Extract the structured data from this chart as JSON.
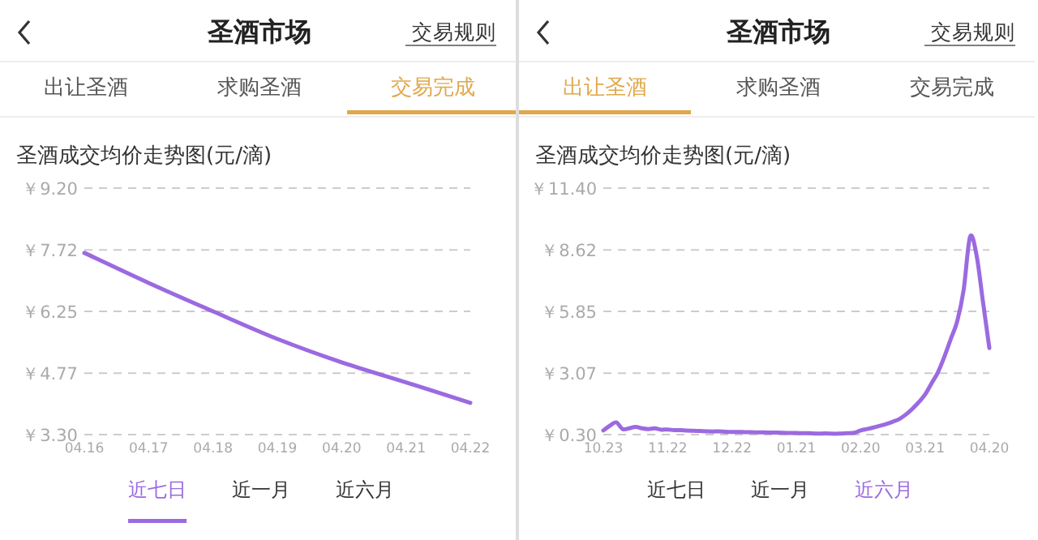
{
  "chart_data": [
    {
      "type": "line",
      "title": "圣酒成交均价走势图(元/滴)",
      "categories": [
        "04.16",
        "04.17",
        "04.18",
        "04.19",
        "04.20",
        "04.21",
        "04.22"
      ],
      "series": [
        {
          "color": "#9b6ae0",
          "values": [
            7.65,
            6.93,
            6.25,
            5.59,
            5.03,
            4.55,
            4.06
          ]
        }
      ],
      "ylim": [
        3.3,
        9.2
      ],
      "yticks": [
        {
          "value": 3.3,
          "label": "￥3.30"
        },
        {
          "value": 4.77,
          "label": "￥4.77"
        },
        {
          "value": 6.25,
          "label": "￥6.25"
        },
        {
          "value": 7.72,
          "label": "￥7.72"
        },
        {
          "value": 9.2,
          "label": "￥9.20"
        }
      ],
      "grid": "y",
      "annotations": [
        "圣酒市场",
        "交易规则",
        "出让圣酒",
        "求购圣酒",
        "交易完成",
        "近七日",
        "近一月",
        "近六月"
      ]
    },
    {
      "type": "line",
      "title": "圣酒成交均价走势图(元/滴)",
      "categories": [
        "10.23",
        null,
        null,
        null,
        null,
        null,
        null,
        null,
        null,
        null,
        "11.22",
        null,
        null,
        null,
        null,
        null,
        null,
        null,
        null,
        null,
        "12.22",
        null,
        null,
        null,
        null,
        null,
        null,
        null,
        null,
        null,
        "01.21",
        null,
        null,
        null,
        null,
        null,
        null,
        null,
        null,
        null,
        "02.20",
        null,
        null,
        null,
        null,
        null,
        null,
        null,
        null,
        null,
        "03.21",
        null,
        null,
        null,
        null,
        null,
        null,
        null,
        null,
        null,
        "04.20"
      ],
      "series": [
        {
          "color": "#9b6ae0",
          "values": [
            0.49,
            0.7,
            0.85,
            0.55,
            0.58,
            0.65,
            0.58,
            0.55,
            0.58,
            0.52,
            0.53,
            0.5,
            0.5,
            0.48,
            0.47,
            0.46,
            0.45,
            0.44,
            0.45,
            0.43,
            0.42,
            0.42,
            0.41,
            0.41,
            0.4,
            0.4,
            0.39,
            0.39,
            0.38,
            0.37,
            0.37,
            0.36,
            0.36,
            0.35,
            0.35,
            0.35,
            0.34,
            0.35,
            0.36,
            0.38,
            0.49,
            0.55,
            0.62,
            0.7,
            0.78,
            0.88,
            1.0,
            1.2,
            1.45,
            1.75,
            2.1,
            2.6,
            3.1,
            3.8,
            4.6,
            5.4,
            6.8,
            9.2,
            8.4,
            6.3,
            4.2
          ]
        }
      ],
      "ylim": [
        0.3,
        11.4
      ],
      "yticks": [
        {
          "value": 0.3,
          "label": "￥0.30"
        },
        {
          "value": 3.07,
          "label": "￥3.07"
        },
        {
          "value": 5.85,
          "label": "￥5.85"
        },
        {
          "value": 8.62,
          "label": "￥8.62"
        },
        {
          "value": 11.4,
          "label": "￥11.40"
        }
      ],
      "grid": "y",
      "annotations": [
        "圣酒市场",
        "交易规则",
        "出让圣酒",
        "求购圣酒",
        "交易完成",
        "近七日",
        "近一月",
        "近六月"
      ]
    }
  ]
}
